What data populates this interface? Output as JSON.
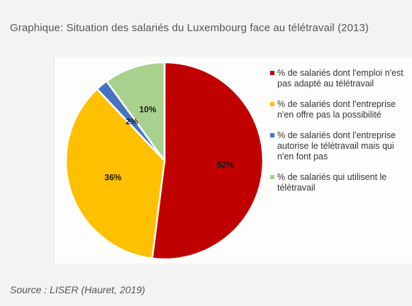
{
  "header": {
    "title": "Graphique: Situation des salariés du Luxembourg face au télétravail (2013)"
  },
  "chart_data": {
    "type": "pie",
    "title": "Graphique: Situation des salariés du Luxembourg face au télétravail (2013)",
    "legend_position": "right",
    "slices": [
      {
        "label": "% de salariés dont l'emploi n'est pas adapté au télétravail",
        "value": 52,
        "value_label": "52%",
        "color": "#c00000"
      },
      {
        "label": "% de salariés dont l'entreprise n'en offre pas la possibilité",
        "value": 36,
        "value_label": "36%",
        "color": "#ffc000"
      },
      {
        "label": "% de salariés dont l'entreprise autorise le télétravail mais qui n'en font pas",
        "value": 2,
        "value_label": "2%",
        "color": "#4472c4"
      },
      {
        "label": "% de salariés qui utilisent le télétravail",
        "value": 10,
        "value_label": "10%",
        "color": "#a9d18e"
      }
    ]
  },
  "footer": {
    "source": "Source : LISER (Hauret, 2019)"
  }
}
